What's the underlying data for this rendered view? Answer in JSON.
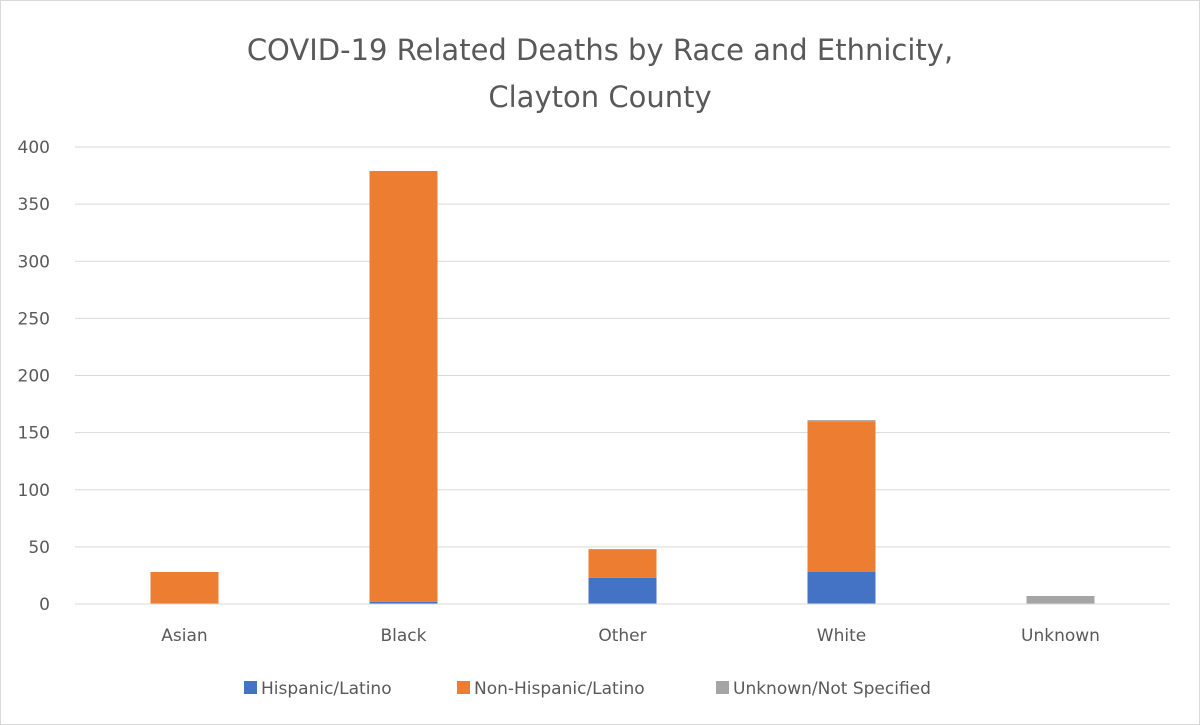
{
  "chart_data": {
    "type": "bar",
    "stacked": true,
    "title_lines": [
      "COVID-19 Related Deaths by Race and Ethnicity,",
      "Clayton County"
    ],
    "categories": [
      "Asian",
      "Black",
      "Other",
      "White",
      "Unknown"
    ],
    "series": [
      {
        "name": "Hispanic/Latino",
        "color": "#4472c4",
        "values": [
          0,
          2,
          23,
          28,
          0
        ]
      },
      {
        "name": "Non-Hispanic/Latino",
        "color": "#ed7d31",
        "values": [
          28,
          377,
          25,
          132,
          0
        ]
      },
      {
        "name": "Unknown/Not Specified",
        "color": "#a5a5a5",
        "values": [
          0,
          0,
          0,
          1,
          7
        ]
      }
    ],
    "ylim": [
      0,
      400
    ],
    "yticks": [
      0,
      50,
      100,
      150,
      200,
      250,
      300,
      350,
      400
    ],
    "xlabel": "",
    "ylabel": "",
    "grid": true,
    "legend_position": "bottom"
  }
}
